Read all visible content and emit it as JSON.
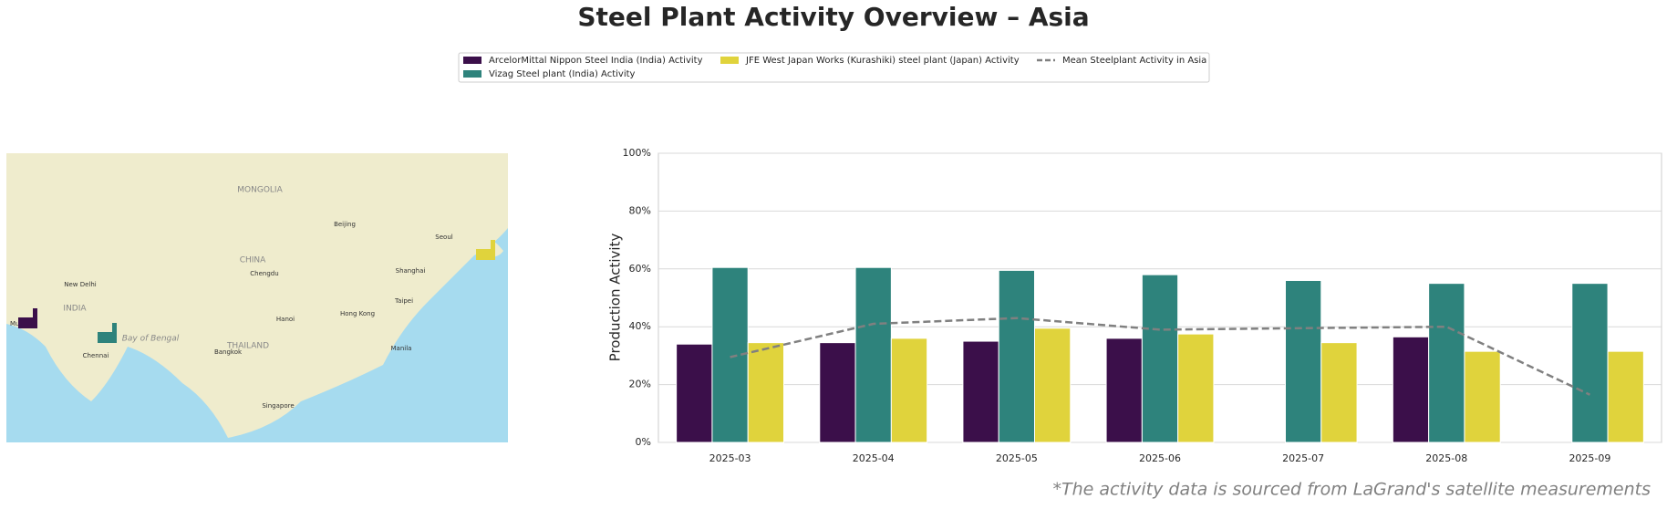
{
  "chart_data": {
    "type": "bar",
    "title": "Steel Plant Activity Overview – Asia",
    "ylabel": "Production Activity",
    "footnote": "*The activity data is sourced from LaGrand's satellite measurements",
    "categories": [
      "2025-03",
      "2025-04",
      "2025-05",
      "2025-06",
      "2025-07",
      "2025-08",
      "2025-09"
    ],
    "series": [
      {
        "name": "ArcelorMittal Nippon Steel India (India) Activity",
        "color": "#3b0f4a",
        "kind": "bar",
        "values": [
          34,
          34.5,
          35,
          36,
          null,
          36.5,
          null
        ]
      },
      {
        "name": "Vizag Steel plant (India) Activity",
        "color": "#2e837c",
        "kind": "bar",
        "values": [
          60.5,
          60.5,
          59.5,
          58,
          56,
          55,
          55
        ]
      },
      {
        "name": "JFE West Japan Works (Kurashiki) steel plant (Japan) Activity",
        "color": "#e0d33c",
        "kind": "bar",
        "values": [
          34.5,
          36,
          39.5,
          37.5,
          34.5,
          31.5,
          31.5
        ]
      },
      {
        "name": "Mean Steelplant Activity in Asia",
        "color": "#808080",
        "kind": "line",
        "line_style": "dashed",
        "values": [
          29.5,
          41,
          43,
          39,
          39.5,
          40,
          16.5
        ]
      }
    ],
    "ylim": [
      0,
      100
    ],
    "yticks": [
      {
        "value": 0,
        "label": "0%"
      },
      {
        "value": 20,
        "label": "20%"
      },
      {
        "value": 40,
        "label": "40%"
      },
      {
        "value": 60,
        "label": "60%"
      },
      {
        "value": 80,
        "label": "80%"
      },
      {
        "value": 100,
        "label": "100%"
      }
    ],
    "grid": true,
    "legend": "top",
    "map": {
      "labels": [
        "MONGOLIA",
        "CHINA",
        "INDIA",
        "THAILAND",
        "Bay of Bengal",
        "Beijing",
        "Shanghai",
        "Seoul",
        "Hong Kong",
        "New Delhi",
        "Chengdu",
        "Taipei",
        "Manila",
        "Hanoi",
        "Bangkok",
        "Chennai",
        "Mumbai",
        "Singapore"
      ]
    }
  }
}
